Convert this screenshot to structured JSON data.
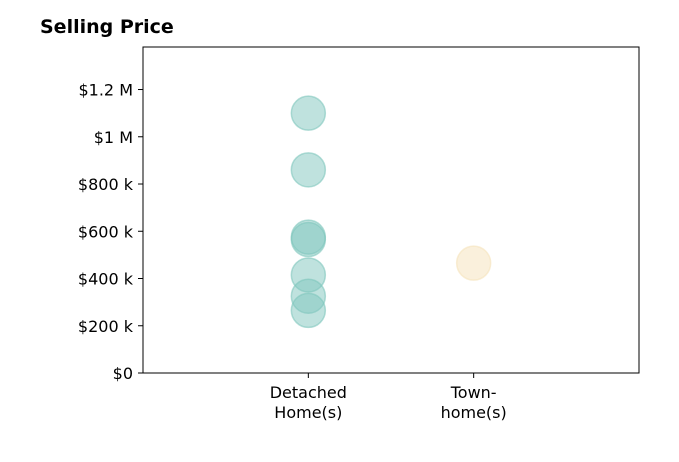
{
  "chart_data": {
    "type": "scatter",
    "title": "Selling Price",
    "xlabel": "",
    "ylabel": "",
    "categories": [
      [
        "Detached",
        "Home(s)"
      ],
      [
        "Town-",
        "home(s)"
      ]
    ],
    "y_ticks": [
      {
        "value": 0,
        "label": "$0"
      },
      {
        "value": 200000,
        "label": "$200 k"
      },
      {
        "value": 400000,
        "label": "$400 k"
      },
      {
        "value": 600000,
        "label": "$600 k"
      },
      {
        "value": 800000,
        "label": "$800 k"
      },
      {
        "value": 1000000,
        "label": "$1 M"
      },
      {
        "value": 1200000,
        "label": "$1.2 M"
      }
    ],
    "ylim": [
      0,
      1380000
    ],
    "xlim": [
      -1,
      2
    ],
    "grid": false,
    "series": [
      {
        "color": "#7fc6bd",
        "category_index": 0,
        "values": [
          1100000,
          860000,
          575000,
          565000,
          415000,
          325000,
          265000
        ]
      },
      {
        "color": "#f5e2ba",
        "category_index": 1,
        "values": [
          465000
        ]
      }
    ]
  }
}
